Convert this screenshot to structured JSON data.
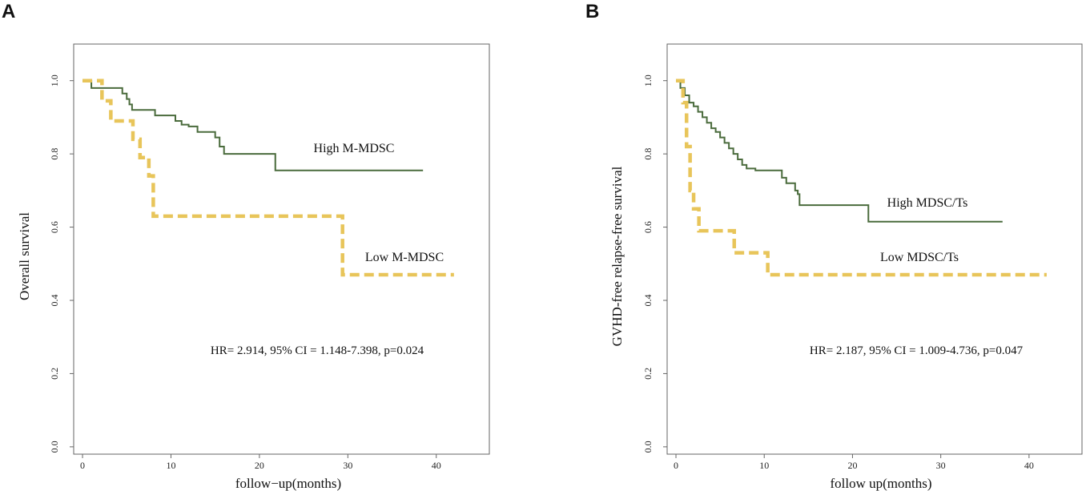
{
  "chart_data": [
    {
      "panel": "A",
      "type": "line",
      "xlabel": "follow−up(months)",
      "ylabel": "Overall survival",
      "xlim": [
        -1,
        46
      ],
      "ylim": [
        -0.02,
        1.1
      ],
      "xticks": [
        0,
        10,
        20,
        30,
        40
      ],
      "yticks": [
        0.0,
        0.2,
        0.4,
        0.6,
        0.8,
        1.0
      ],
      "ytick_labels": [
        "0.0",
        "0.2",
        "0.4",
        "0.6",
        "0.8",
        "1.0"
      ],
      "annotation": "HR= 2.914, 95% CI = 1.148-7.398, p=0.024",
      "series": [
        {
          "name": "High M-MDSC",
          "color": "#4a6b3c",
          "style": "solid",
          "x": [
            0,
            1,
            4,
            4.5,
            5,
            5.3,
            5.6,
            8,
            8.2,
            10.5,
            11.2,
            12,
            13,
            14,
            15,
            15.5,
            16,
            21.5,
            21.8,
            38.5
          ],
          "y": [
            1.0,
            0.98,
            0.98,
            0.965,
            0.95,
            0.935,
            0.92,
            0.92,
            0.905,
            0.89,
            0.88,
            0.875,
            0.86,
            0.86,
            0.845,
            0.82,
            0.8,
            0.8,
            0.755,
            0.755
          ]
        },
        {
          "name": "Low M-MDSC",
          "color": "#e8c55a",
          "style": "dashed",
          "x": [
            0,
            2.2,
            3.2,
            5.7,
            6.5,
            7.5,
            8.0,
            29.0,
            29.4,
            42
          ],
          "y": [
            1.0,
            0.945,
            0.89,
            0.84,
            0.79,
            0.74,
            0.63,
            0.63,
            0.47,
            0.47
          ]
        }
      ]
    },
    {
      "panel": "B",
      "type": "line",
      "xlabel": "follow  up(months)",
      "ylabel": "GVHD-free relapse-free survival",
      "xlim": [
        -1,
        46
      ],
      "ylim": [
        -0.02,
        1.1
      ],
      "xticks": [
        0,
        10,
        20,
        30,
        40
      ],
      "yticks": [
        0.0,
        0.2,
        0.4,
        0.6,
        0.8,
        1.0
      ],
      "ytick_labels": [
        "0.0",
        "0.2",
        "0.4",
        "0.6",
        "0.8",
        "1.0"
      ],
      "annotation": "HR= 2.187, 95% CI = 1.009-4.736, p=0.047",
      "series": [
        {
          "name": "High MDSC/Ts",
          "color": "#4a6b3c",
          "style": "solid",
          "x": [
            0,
            0.5,
            1,
            1.5,
            2,
            2.5,
            3,
            3.5,
            4,
            4.5,
            5,
            5.5,
            6,
            6.5,
            7,
            7.5,
            8,
            9,
            10,
            12,
            12.5,
            13,
            13.5,
            13.8,
            14,
            21.5,
            21.8,
            37
          ],
          "y": [
            1.0,
            0.98,
            0.96,
            0.94,
            0.93,
            0.915,
            0.9,
            0.885,
            0.87,
            0.86,
            0.845,
            0.83,
            0.815,
            0.8,
            0.785,
            0.77,
            0.76,
            0.755,
            0.755,
            0.735,
            0.72,
            0.72,
            0.7,
            0.69,
            0.66,
            0.66,
            0.615,
            0.615
          ]
        },
        {
          "name": "Low MDSC/Ts",
          "color": "#e8c55a",
          "style": "dashed",
          "x": [
            0,
            0.8,
            1.2,
            1.6,
            2.0,
            2.6,
            6.2,
            6.6,
            10.0,
            10.4,
            42
          ],
          "y": [
            1.0,
            0.94,
            0.82,
            0.7,
            0.65,
            0.59,
            0.59,
            0.53,
            0.53,
            0.47,
            0.47
          ]
        }
      ]
    }
  ]
}
